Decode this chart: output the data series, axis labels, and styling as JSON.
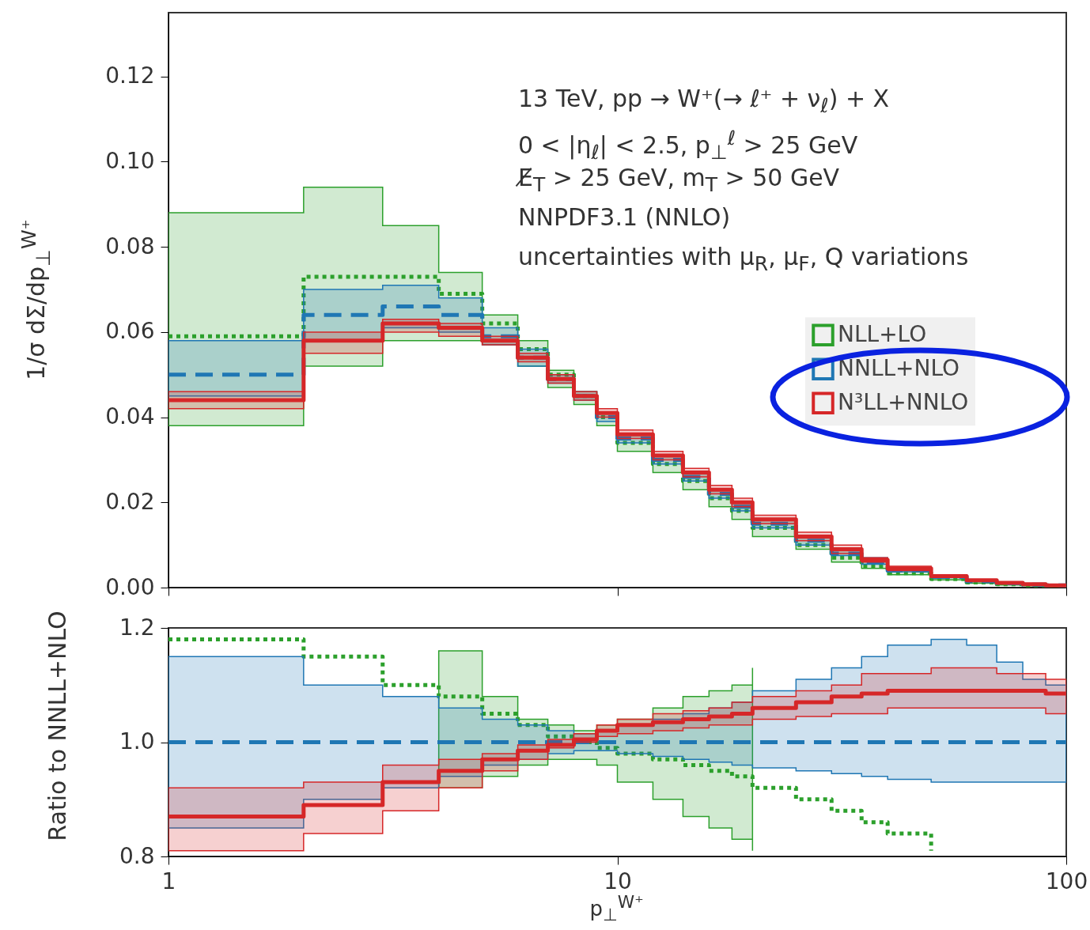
{
  "chart_data": [
    {
      "type": "step",
      "ylabel": "1/σ dΣ/dp$_{⊥}$$^{W⁺}$",
      "log": "x",
      "legend": "right",
      "tick_labels": "y",
      "annotations": [
        "13 TeV, pp → W⁺(→ ℓ⁺ + ν$_{ℓ}$) + X",
        "0 < |η$_{ℓ}$| < 2.5, p$_{⊥}$$^{ℓ}$ > 25 GeV",
        "E̸$_{T}$ > 25 GeV, m$_{T}$ > 50 GeV",
        "NNPDF3.1 (NNLO)",
        "uncertainties with μ$_{R}$, μ$_{F}$, Q variations"
      ],
      "x": [
        1,
        2,
        3,
        4,
        5,
        6,
        7,
        8,
        9,
        10,
        12,
        14,
        16,
        18,
        20,
        25,
        30,
        35,
        40,
        50,
        60,
        70,
        80,
        90,
        100
      ],
      "xlim": [
        1,
        100
      ],
      "xticks": [
        1,
        10,
        100
      ],
      "ylim": [
        0,
        0.135
      ],
      "yticks": [
        {
          "value": 0,
          "label": "0.00"
        },
        {
          "value": 0.02,
          "label": "0.02"
        },
        {
          "value": 0.04,
          "label": "0.04"
        },
        {
          "value": 0.06,
          "label": "0.06"
        },
        {
          "value": 0.08,
          "label": "0.08"
        },
        {
          "value": 0.1,
          "label": "0.10"
        },
        {
          "value": 0.12,
          "label": "0.12"
        }
      ],
      "series": [
        {
          "name": "NLL+LO",
          "color": "#2ca02c",
          "line_style": "dotted",
          "values": [
            0.059,
            0.073,
            0.073,
            0.069,
            0.062,
            0.056,
            0.05,
            0.045,
            0.04,
            0.034,
            0.029,
            0.025,
            0.021,
            0.018,
            0.014,
            0.01,
            0.007,
            0.005,
            0.0034,
            0.002,
            0.0012,
            0.0008,
            0.0005,
            0.0003,
            0.0003
          ],
          "lower": [
            0.038,
            0.052,
            0.058,
            0.058,
            0.057,
            0.052,
            0.047,
            0.043,
            0.038,
            0.032,
            0.027,
            0.023,
            0.019,
            0.016,
            0.012,
            0.009,
            0.006,
            0.0045,
            0.003,
            0.0018,
            0.001,
            0.0006,
            0.0004,
            0.0002,
            0.0002
          ],
          "upper": [
            0.088,
            0.094,
            0.085,
            0.074,
            0.064,
            0.058,
            0.051,
            0.046,
            0.041,
            0.036,
            0.031,
            0.027,
            0.023,
            0.02,
            0.016,
            0.012,
            0.009,
            0.0065,
            0.0045,
            0.0028,
            0.0017,
            0.0011,
            0.0007,
            0.0005,
            0.0005
          ]
        },
        {
          "name": "NNLL+NLO",
          "color": "#1f77b4",
          "line_style": "dashed",
          "values": [
            0.05,
            0.064,
            0.066,
            0.064,
            0.059,
            0.054,
            0.049,
            0.045,
            0.04,
            0.035,
            0.03,
            0.026,
            0.022,
            0.019,
            0.015,
            0.011,
            0.008,
            0.006,
            0.004,
            0.0025,
            0.0015,
            0.001,
            0.0007,
            0.0005,
            0.0005
          ],
          "lower": [
            0.045,
            0.058,
            0.061,
            0.06,
            0.057,
            0.052,
            0.048,
            0.044,
            0.039,
            0.034,
            0.029,
            0.025,
            0.021,
            0.018,
            0.014,
            0.01,
            0.0075,
            0.0055,
            0.0037,
            0.0023,
            0.0014,
            0.0009,
            0.0006,
            0.0004,
            0.0004
          ],
          "upper": [
            0.058,
            0.07,
            0.071,
            0.068,
            0.061,
            0.056,
            0.05,
            0.046,
            0.041,
            0.036,
            0.031,
            0.027,
            0.023,
            0.02,
            0.016,
            0.012,
            0.009,
            0.007,
            0.0047,
            0.003,
            0.0018,
            0.0011,
            0.0008,
            0.0006,
            0.0006
          ]
        },
        {
          "name": "N³LL+NNLO",
          "color": "#d62728",
          "line_style": "solid",
          "values": [
            0.044,
            0.058,
            0.062,
            0.061,
            0.058,
            0.054,
            0.049,
            0.045,
            0.041,
            0.036,
            0.031,
            0.027,
            0.023,
            0.02,
            0.016,
            0.012,
            0.009,
            0.0065,
            0.0045,
            0.0027,
            0.0017,
            0.0011,
            0.0008,
            0.0005,
            0.0005
          ],
          "lower": [
            0.042,
            0.055,
            0.06,
            0.059,
            0.057,
            0.053,
            0.048,
            0.044,
            0.04,
            0.035,
            0.03,
            0.026,
            0.022,
            0.019,
            0.015,
            0.011,
            0.008,
            0.006,
            0.004,
            0.0025,
            0.0015,
            0.001,
            0.0007,
            0.0004,
            0.0004
          ],
          "upper": [
            0.046,
            0.06,
            0.063,
            0.062,
            0.059,
            0.055,
            0.05,
            0.046,
            0.042,
            0.037,
            0.032,
            0.028,
            0.024,
            0.021,
            0.017,
            0.013,
            0.01,
            0.007,
            0.005,
            0.0029,
            0.0019,
            0.0012,
            0.0009,
            0.0006,
            0.0006
          ]
        }
      ]
    },
    {
      "type": "step",
      "xlabel": "p$_{⊥}$$^{W⁺}$",
      "ylabel": "Ratio to NNLL+NLO",
      "log": "x",
      "x": [
        1,
        2,
        3,
        4,
        5,
        6,
        7,
        8,
        9,
        10,
        12,
        14,
        16,
        18,
        20,
        25,
        30,
        35,
        40,
        50,
        60,
        70,
        80,
        90,
        100
      ],
      "xlim": [
        1,
        100
      ],
      "xticks": [
        1,
        10,
        100
      ],
      "ylim": [
        0.8,
        1.2
      ],
      "yticks": [
        {
          "value": 0.8,
          "label": "0.8"
        },
        {
          "value": 1.0,
          "label": "1.0"
        },
        {
          "value": 1.2,
          "label": "1.2"
        }
      ],
      "series": [
        {
          "color": "#2ca02c",
          "line_style": "dotted",
          "values": [
            1.18,
            1.15,
            1.1,
            1.08,
            1.05,
            1.03,
            1.01,
            1.0,
            0.99,
            0.98,
            0.97,
            0.96,
            0.95,
            0.94,
            0.92,
            0.9,
            0.88,
            0.86,
            0.84,
            0.81,
            null,
            null,
            null,
            null,
            null
          ],
          "lower": [
            null,
            null,
            null,
            0.92,
            0.94,
            0.96,
            0.97,
            0.97,
            0.96,
            0.93,
            0.9,
            0.87,
            0.85,
            0.83,
            0.81,
            null,
            null,
            null,
            null,
            null,
            null,
            null,
            null,
            null,
            null
          ],
          "upper": [
            null,
            null,
            null,
            1.16,
            1.08,
            1.04,
            1.03,
            1.02,
            1.03,
            1.04,
            1.06,
            1.08,
            1.09,
            1.1,
            1.13,
            null,
            null,
            null,
            null,
            null,
            null,
            null,
            null,
            null,
            null
          ]
        },
        {
          "color": "#1f77b4",
          "line_style": "dashed",
          "values": [
            1,
            1,
            1,
            1,
            1,
            1,
            1,
            1,
            1,
            1,
            1,
            1,
            1,
            1,
            1,
            1,
            1,
            1,
            1,
            1,
            1,
            1,
            1,
            1,
            1
          ],
          "lower": [
            0.85,
            0.9,
            0.92,
            0.94,
            0.96,
            0.97,
            0.98,
            0.985,
            0.985,
            0.98,
            0.975,
            0.97,
            0.965,
            0.96,
            0.955,
            0.95,
            0.945,
            0.94,
            0.935,
            0.93,
            0.93,
            0.93,
            0.93,
            0.93,
            0.93
          ],
          "upper": [
            1.15,
            1.1,
            1.08,
            1.06,
            1.04,
            1.03,
            1.02,
            1.015,
            1.02,
            1.03,
            1.04,
            1.05,
            1.06,
            1.07,
            1.09,
            1.11,
            1.13,
            1.15,
            1.17,
            1.18,
            1.17,
            1.14,
            1.11,
            1.1,
            1.1
          ]
        },
        {
          "color": "#d62728",
          "line_style": "solid",
          "values": [
            0.87,
            0.89,
            0.93,
            0.95,
            0.97,
            0.985,
            0.995,
            1.005,
            1.02,
            1.03,
            1.035,
            1.04,
            1.045,
            1.05,
            1.06,
            1.07,
            1.08,
            1.085,
            1.09,
            1.09,
            1.09,
            1.09,
            1.09,
            1.085,
            1.085
          ],
          "lower": [
            0.81,
            0.84,
            0.88,
            0.92,
            0.95,
            0.97,
            0.99,
            1.0,
            1.01,
            1.015,
            1.02,
            1.025,
            1.03,
            1.03,
            1.04,
            1.045,
            1.05,
            1.05,
            1.06,
            1.06,
            1.06,
            1.06,
            1.06,
            1.05,
            1.05
          ],
          "upper": [
            0.92,
            0.93,
            0.96,
            0.97,
            0.98,
            0.995,
            1.005,
            1.015,
            1.03,
            1.04,
            1.05,
            1.055,
            1.06,
            1.07,
            1.08,
            1.09,
            1.1,
            1.12,
            1.12,
            1.13,
            1.13,
            1.12,
            1.12,
            1.11,
            1.11
          ]
        }
      ]
    }
  ]
}
